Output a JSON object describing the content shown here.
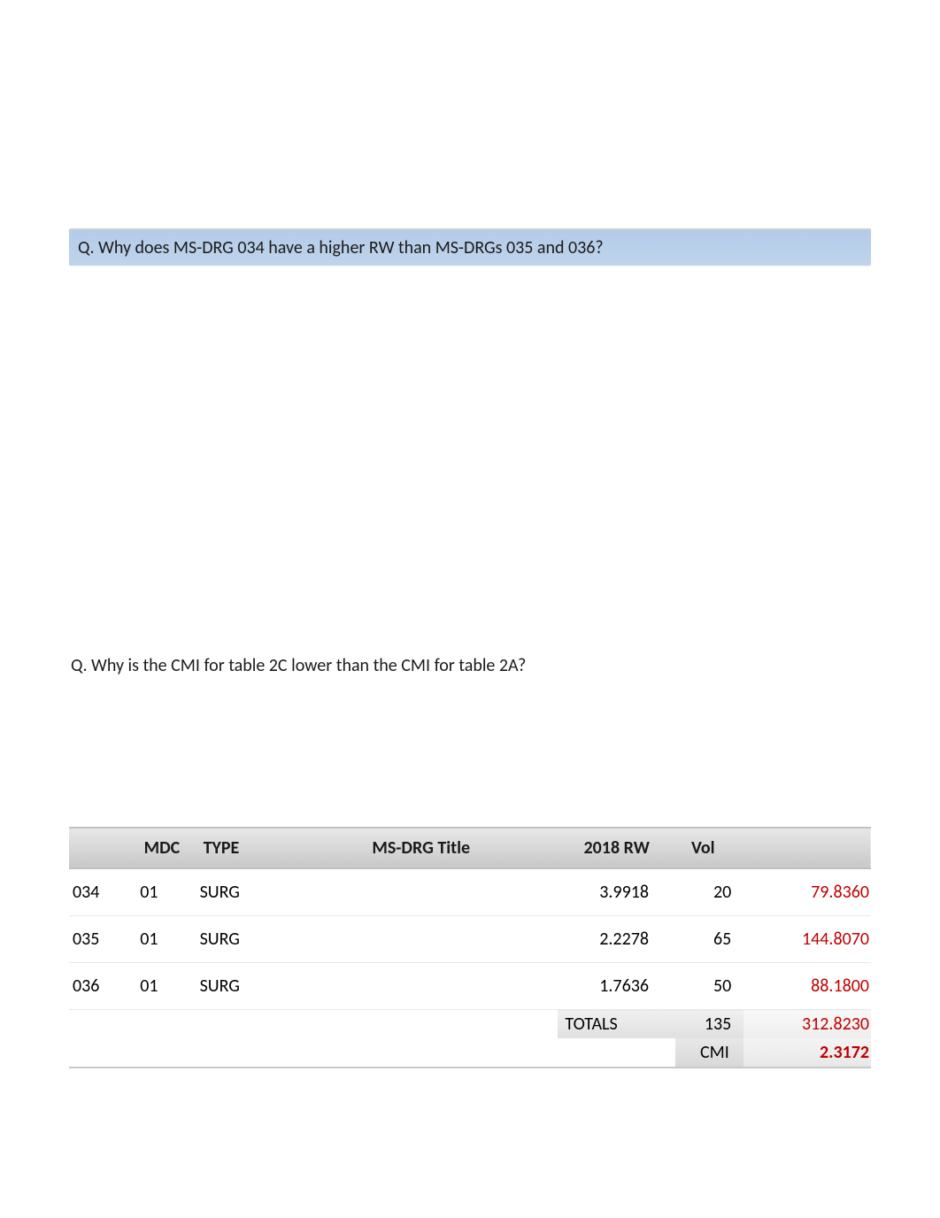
{
  "question1": "Q. Why does MS-DRG 034 have a higher RW than MS-DRGs 035 and 036?",
  "question2": "Q. Why is the CMI for table 2C lower than the CMI for table 2A?",
  "table": {
    "headers": {
      "h1": "",
      "h2": "MDC",
      "h3": "TYPE",
      "h4": "MS-DRG Title",
      "h5": "2018 RW",
      "h6": "Vol",
      "h7": ""
    },
    "rows": [
      {
        "drg": "034",
        "mdc": "01",
        "type": "SURG",
        "title": "",
        "rw": "3.9918",
        "vol": "20",
        "calc": "79.8360"
      },
      {
        "drg": "035",
        "mdc": "01",
        "type": "SURG",
        "title": "",
        "rw": "2.2278",
        "vol": "65",
        "calc": "144.8070"
      },
      {
        "drg": "036",
        "mdc": "01",
        "type": "SURG",
        "title": "",
        "rw": "1.7636",
        "vol": "50",
        "calc": "88.1800"
      }
    ],
    "totals": {
      "label": "TOTALS",
      "vol": "135",
      "calc": "312.8230"
    },
    "cmi": {
      "label": "CMI",
      "value": "2.3172"
    }
  },
  "colors": {
    "highlight_bg": "#bfd4ec",
    "red_text": "#c00000",
    "header_bg": "#d8d8d8",
    "body_text": "#1a1a1a"
  }
}
